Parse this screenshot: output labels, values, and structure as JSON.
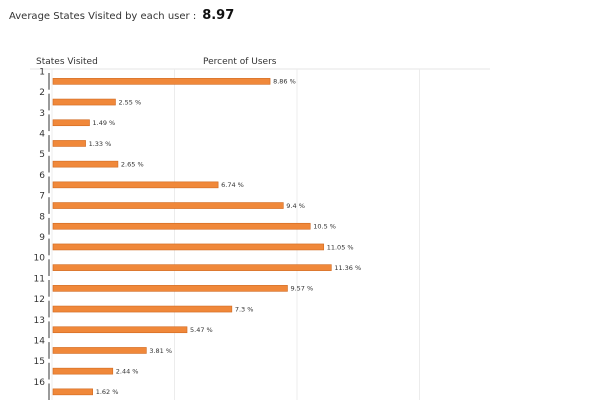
{
  "summary": {
    "label": "Average States Visited by each user :",
    "value": "8.97"
  },
  "chart_data": {
    "type": "bar",
    "orientation": "horizontal",
    "category_header": "States Visited",
    "value_header": "Percent of Users",
    "categories": [
      "1",
      "2",
      "3",
      "4",
      "5",
      "6",
      "7",
      "8",
      "9",
      "10",
      "11",
      "12",
      "13",
      "14",
      "15",
      "16"
    ],
    "values": [
      8.86,
      2.55,
      1.49,
      1.33,
      2.65,
      6.74,
      9.4,
      10.5,
      11.05,
      11.36,
      9.57,
      7.3,
      5.47,
      3.81,
      2.44,
      1.62
    ],
    "value_labels": [
      "8.86 %",
      "2.55 %",
      "1.49 %",
      "1.33 %",
      "2.65 %",
      "6.74 %",
      "9.4 %",
      "10.5 %",
      "11.05 %",
      "11.36 %",
      "9.57 %",
      "7.3 %",
      "5.47 %",
      "3.81 %",
      "2.44 %",
      "1.62 %"
    ],
    "xlim": [
      0,
      15
    ],
    "grid": true,
    "bar_color": "#f0883a",
    "bar_edge_color": "#d0691f"
  }
}
